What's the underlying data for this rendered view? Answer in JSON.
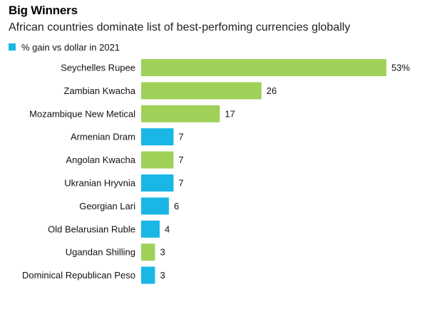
{
  "colors": {
    "green": "#9fd159",
    "blue": "#19b6e6"
  },
  "chart_data": {
    "type": "bar",
    "orientation": "horizontal",
    "title": "Big Winners",
    "subtitle": "African countries dominate list of best-perfoming currencies globally",
    "legend": {
      "label": "% gain vs dollar in 2021",
      "color": "#19b6e6",
      "placement": "top-left"
    },
    "categories": [
      "Seychelles Rupee",
      "Zambian Kwacha",
      "Mozambique New Metical",
      "Armenian Dram",
      "Angolan Kwacha",
      "Ukranian Hryvnia",
      "Georgian Lari",
      "Old Belarusian Ruble",
      "Ugandan Shilling",
      "Dominical Republican Peso"
    ],
    "values": [
      53,
      26,
      17,
      7,
      7,
      7,
      6,
      4,
      3,
      3
    ],
    "value_labels": [
      "53%",
      "26",
      "17",
      "7",
      "7",
      "7",
      "6",
      "4",
      "3",
      "3"
    ],
    "bar_colors": [
      "green",
      "green",
      "green",
      "blue",
      "green",
      "blue",
      "blue",
      "blue",
      "green",
      "blue"
    ],
    "xlim": [
      0,
      53
    ],
    "grid": false
  }
}
